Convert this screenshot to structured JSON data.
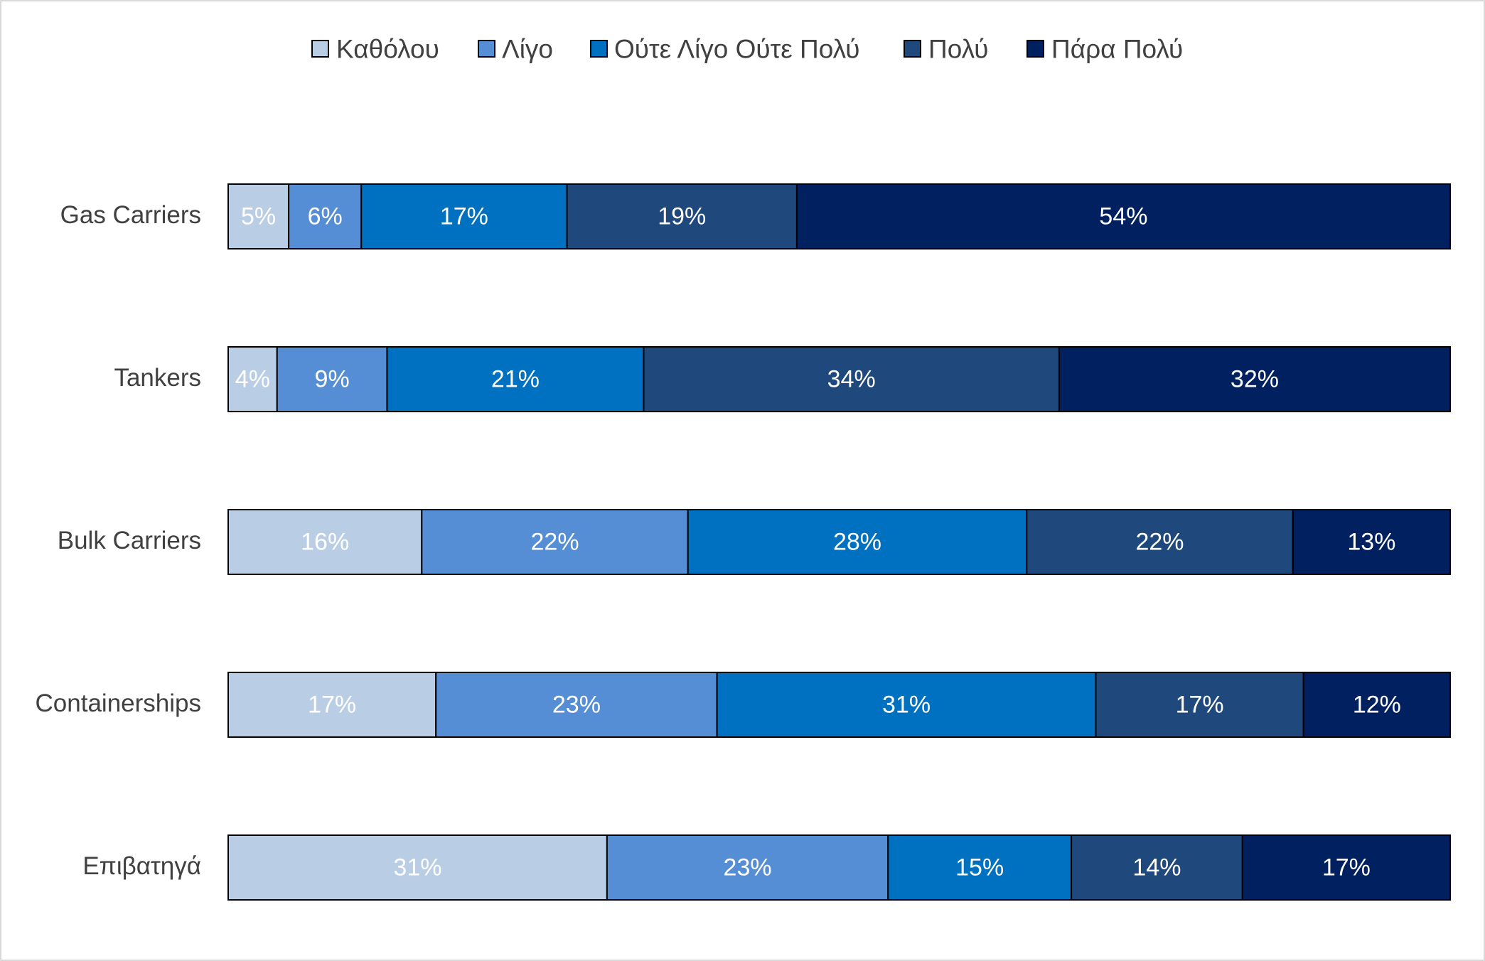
{
  "chart_data": {
    "type": "bar",
    "orientation": "horizontal",
    "stacked": "100%",
    "title": "",
    "xlabel": "",
    "ylabel": "",
    "xlim": [
      0,
      100
    ],
    "grid": false,
    "legend_position": "top",
    "categories": [
      "Gas Carriers",
      "Tankers",
      "Bulk Carriers",
      "Containerships",
      "Επιβατηγά"
    ],
    "series": [
      {
        "name": "Καθόλου",
        "color": "#b9cde5",
        "values": [
          5,
          4,
          16,
          17,
          31
        ],
        "labels": [
          "5%",
          "4%",
          "16%",
          "17%",
          "31%"
        ]
      },
      {
        "name": "Λίγο",
        "color": "#558ed5",
        "values": [
          6,
          9,
          22,
          23,
          23
        ],
        "labels": [
          "6%",
          "9%",
          "22%",
          "23%",
          "23%"
        ]
      },
      {
        "name": "Ούτε Λίγο Ούτε Πολύ",
        "color": "#0070c0",
        "values": [
          17,
          21,
          28,
          31,
          15
        ],
        "labels": [
          "17%",
          "21%",
          "28%",
          "31%",
          "15%"
        ]
      },
      {
        "name": "Πολύ",
        "color": "#1f497d",
        "values": [
          19,
          34,
          22,
          17,
          14
        ],
        "labels": [
          "19%",
          "34%",
          "22%",
          "17%",
          "14%"
        ]
      },
      {
        "name": "Πάρα Πολύ",
        "color": "#002060",
        "values": [
          54,
          32,
          13,
          12,
          17
        ],
        "labels": [
          "54%",
          "32%",
          "13%",
          "12%",
          "17%"
        ]
      }
    ]
  }
}
